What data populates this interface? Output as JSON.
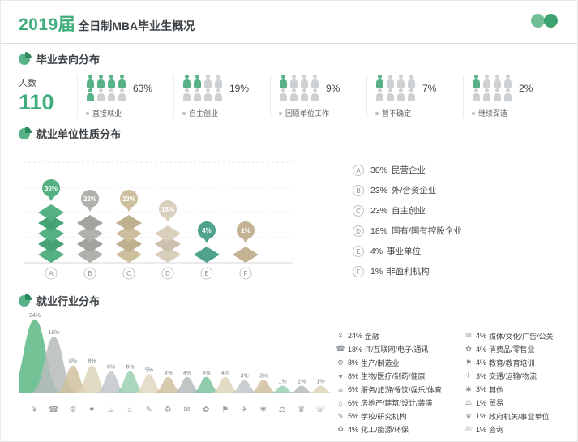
{
  "header": {
    "year": "2019届",
    "title": "全日制MBA毕业生概况"
  },
  "colors": {
    "accent_green": "#3fae7c",
    "dark_text": "#3c4145",
    "muted_gray": "#8a9094"
  },
  "destinations": {
    "section_title": "毕业去向分布",
    "count_label": "人数",
    "count_value": "110",
    "people_per_group": 8,
    "items": [
      {
        "percent": "63%",
        "label": "直接就业",
        "green_count": 5
      },
      {
        "percent": "19%",
        "label": "自主创业",
        "green_count": 2
      },
      {
        "percent": "9%",
        "label": "回原单位工作",
        "green_count": 1
      },
      {
        "percent": "7%",
        "label": "暂不确定",
        "green_count": 1
      },
      {
        "percent": "2%",
        "label": "继续深造",
        "green_count": 1
      }
    ]
  },
  "employer_type": {
    "section_title": "就业单位性质分布",
    "bars": [
      {
        "key": "A",
        "value": 30,
        "percent": "30%",
        "color": "#55b183"
      },
      {
        "key": "B",
        "value": 23,
        "percent": "23%",
        "color": "#aeb1ac"
      },
      {
        "key": "C",
        "value": 23,
        "percent": "23%",
        "color": "#cdbe9e"
      },
      {
        "key": "D",
        "value": 18,
        "percent": "18%",
        "color": "#d9cfbc"
      },
      {
        "key": "E",
        "value": 4,
        "percent": "4%",
        "color": "#4fa28c"
      },
      {
        "key": "F",
        "value": 1,
        "percent": "1%",
        "color": "#c3b393"
      }
    ],
    "legend": [
      {
        "key": "A",
        "percent": "30%",
        "label": "民营企业"
      },
      {
        "key": "B",
        "percent": "23%",
        "label": "外/合资企业"
      },
      {
        "key": "C",
        "percent": "23%",
        "label": "自主创业"
      },
      {
        "key": "D",
        "percent": "18%",
        "label": "国有/国有控股企业"
      },
      {
        "key": "E",
        "percent": "4%",
        "label": "事业单位"
      },
      {
        "key": "F",
        "percent": "1%",
        "label": "非盈利机构"
      }
    ]
  },
  "industry": {
    "section_title": "就业行业分布",
    "items": [
      {
        "percent": "24%",
        "value": 24,
        "label": "金融",
        "icon": "¥",
        "icon_name": "finance-icon",
        "color": "#5cb885"
      },
      {
        "percent": "18%",
        "value": 18,
        "label": "IT/互联网/电子/通讯",
        "icon": "☎",
        "icon_name": "it-internet-icon",
        "color": "#b7bbbb"
      },
      {
        "percent": "8%",
        "value": 8,
        "label": "生产/制造业",
        "icon": "⚙",
        "icon_name": "manufacturing-icon",
        "color": "#cfbf9e"
      },
      {
        "percent": "8%",
        "value": 8,
        "label": "生物/医疗/制药/健康",
        "icon": "♥",
        "icon_name": "healthcare-icon",
        "color": "#ded3b8"
      },
      {
        "percent": "6%",
        "value": 6,
        "label": "服务/旅游/餐饮/娱乐/体育",
        "icon": "☕",
        "icon_name": "service-tourism-icon",
        "color": "#c2c7c9"
      },
      {
        "percent": "6%",
        "value": 6,
        "label": "房地产/建筑/设计/装潢",
        "icon": "⌂",
        "icon_name": "real-estate-icon",
        "color": "#9acfb2"
      },
      {
        "percent": "5%",
        "value": 5,
        "label": "学校/研究机构",
        "icon": "✎",
        "icon_name": "education-research-icon",
        "color": "#e2d8c2"
      },
      {
        "percent": "4%",
        "value": 4,
        "label": "化工/能源/环保",
        "icon": "♻",
        "icon_name": "chemical-energy-icon",
        "color": "#cfbf9e"
      },
      {
        "percent": "4%",
        "value": 4,
        "label": "媒体/文化/广告/公关",
        "icon": "✉",
        "icon_name": "media-culture-icon",
        "color": "#b7bbbb"
      },
      {
        "percent": "4%",
        "value": 4,
        "label": "消费品/零售业",
        "icon": "✿",
        "icon_name": "consumer-retail-icon",
        "color": "#7cc29e"
      },
      {
        "percent": "4%",
        "value": 4,
        "label": "教育/教育培训",
        "icon": "⚑",
        "icon_name": "education-training-icon",
        "color": "#ded3b8"
      },
      {
        "percent": "3%",
        "value": 3,
        "label": "交通/运输/物流",
        "icon": "✈",
        "icon_name": "transport-logistics-icon",
        "color": "#c2c7c9"
      },
      {
        "percent": "3%",
        "value": 3,
        "label": "其他",
        "icon": "✱",
        "icon_name": "other-icon",
        "color": "#cfbf9e"
      },
      {
        "percent": "1%",
        "value": 1,
        "label": "贸易",
        "icon": "⚖",
        "icon_name": "trade-icon",
        "color": "#9acfb2"
      },
      {
        "percent": "1%",
        "value": 1,
        "label": "政府机关/事业单位",
        "icon": "♛",
        "icon_name": "government-icon",
        "color": "#b7bbbb"
      },
      {
        "percent": "1%",
        "value": 1,
        "label": "咨询",
        "icon": "☏",
        "icon_name": "consulting-icon",
        "color": "#ded3b8"
      }
    ]
  },
  "chart_data": [
    {
      "type": "pictogram",
      "title": "毕业去向分布",
      "categories": [
        "直接就业",
        "自主创业",
        "回原单位工作",
        "暂不确定",
        "继续深造"
      ],
      "values": [
        63,
        19,
        9,
        7,
        2
      ],
      "unit": "%",
      "total_label": "人数",
      "total": 110
    },
    {
      "type": "bar",
      "title": "就业单位性质分布",
      "categories": [
        "A 民营企业",
        "B 外/合资企业",
        "C 自主创业",
        "D 国有/国有控股企业",
        "E 事业单位",
        "F 非盈利机构"
      ],
      "values": [
        30,
        23,
        23,
        18,
        4,
        1
      ],
      "unit": "%",
      "ylim": [
        0,
        35
      ],
      "grid": true,
      "legend_position": "right"
    },
    {
      "type": "area",
      "title": "就业行业分布",
      "categories": [
        "金融",
        "IT/互联网/电子/通讯",
        "生产/制造业",
        "生物/医疗/制药/健康",
        "服务/旅游/餐饮/娱乐/体育",
        "房地产/建筑/设计/装潢",
        "学校/研究机构",
        "化工/能源/环保",
        "媒体/文化/广告/公关",
        "消费品/零售业",
        "教育/教育培训",
        "交通/运输/物流",
        "其他",
        "贸易",
        "政府机关/事业单位",
        "咨询"
      ],
      "values": [
        24,
        18,
        8,
        8,
        6,
        6,
        5,
        4,
        4,
        4,
        4,
        3,
        3,
        1,
        1,
        1
      ],
      "unit": "%",
      "legend_position": "right"
    }
  ]
}
